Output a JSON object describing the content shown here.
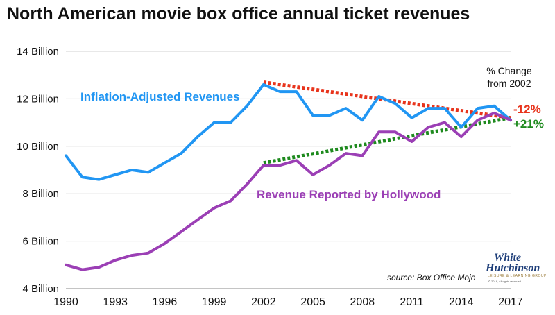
{
  "chart_data": {
    "type": "line",
    "title": "North American movie box office annual ticket revenues",
    "x": [
      1990,
      1991,
      1992,
      1993,
      1994,
      1995,
      1996,
      1997,
      1998,
      1999,
      2000,
      2001,
      2002,
      2003,
      2004,
      2005,
      2006,
      2007,
      2008,
      2009,
      2010,
      2011,
      2012,
      2013,
      2014,
      2015,
      2016,
      2017
    ],
    "x_ticks": [
      "1990",
      "1993",
      "1996",
      "1999",
      "2002",
      "2005",
      "2008",
      "2011",
      "2014",
      "2017"
    ],
    "y_ticks": [
      "4 Billion",
      "6 Billion",
      "8 Billion",
      "10 Billion",
      "12 Billion",
      "14 Billion"
    ],
    "ylim": [
      4,
      14
    ],
    "xlim": [
      1990,
      2017
    ],
    "grid": "horizontal",
    "series": [
      {
        "name": "Inflation-Adjusted Revenues",
        "color": "#2196f3",
        "values": [
          9.6,
          8.7,
          8.6,
          8.8,
          9.0,
          8.9,
          9.3,
          9.7,
          10.4,
          11.0,
          11.0,
          11.7,
          12.6,
          12.3,
          12.3,
          11.3,
          11.3,
          11.6,
          11.1,
          12.1,
          11.8,
          11.2,
          11.6,
          11.6,
          10.8,
          11.6,
          11.7,
          11.1
        ]
      },
      {
        "name": "Revenue Reported by Hollywood",
        "color": "#9b3fb5",
        "values": [
          5.0,
          4.8,
          4.9,
          5.2,
          5.4,
          5.5,
          5.9,
          6.4,
          6.9,
          7.4,
          7.7,
          8.4,
          9.2,
          9.2,
          9.4,
          8.8,
          9.2,
          9.7,
          9.6,
          10.6,
          10.6,
          10.2,
          10.8,
          11.0,
          10.4,
          11.1,
          11.4,
          11.1
        ]
      }
    ],
    "trendlines": [
      {
        "name": "-12%",
        "color": "#e8341c",
        "x": [
          2002,
          2017
        ],
        "y": [
          12.7,
          11.2
        ]
      },
      {
        "name": "+21%",
        "color": "#1e8a1e",
        "x": [
          2002,
          2017
        ],
        "y": [
          9.3,
          11.2
        ]
      }
    ],
    "annotations": {
      "change_header_line1": "% Change",
      "change_header_line2": "from 2002",
      "inflation_change": "-12%",
      "hollywood_change": "+21%",
      "source": "source: Box Office Mojo"
    },
    "logo": {
      "line1": "White",
      "line2": "Hutchinson",
      "tagline": "LEISURE & LEARNING GROUP",
      "copyright": "© 2018, All rights reserved"
    }
  }
}
